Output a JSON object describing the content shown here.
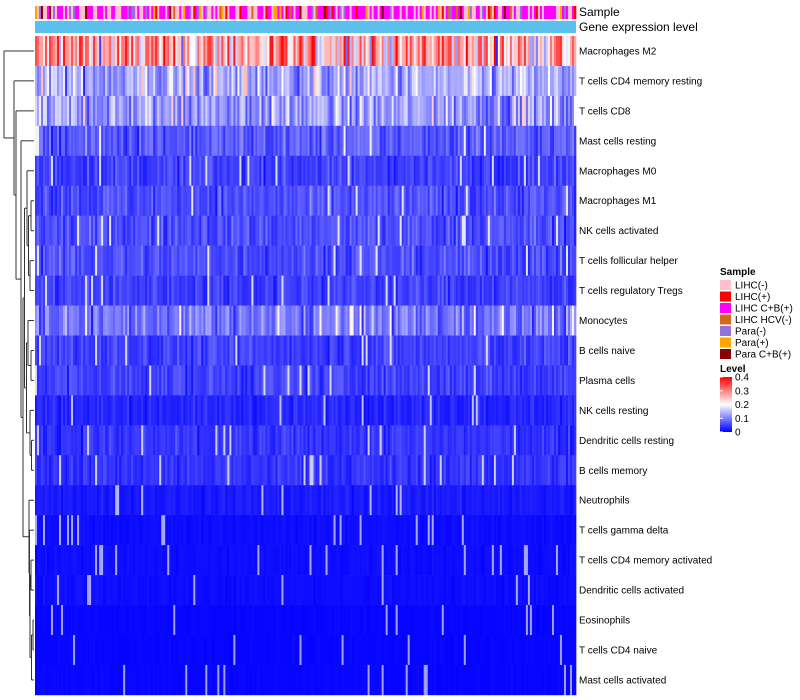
{
  "chart_data": {
    "type": "heatmap",
    "title": "",
    "annotations": {
      "sample_label": "Sample",
      "gene_label": "Gene expression level"
    },
    "rows": [
      {
        "name": "Macrophages M2",
        "mean": 0.26
      },
      {
        "name": "T cells CD4 memory resting",
        "mean": 0.13
      },
      {
        "name": "T cells CD8",
        "mean": 0.12
      },
      {
        "name": "Mast cells resting",
        "mean": 0.07
      },
      {
        "name": "Macrophages M0",
        "mean": 0.05
      },
      {
        "name": "Macrophages M1",
        "mean": 0.06
      },
      {
        "name": "NK cells activated",
        "mean": 0.06
      },
      {
        "name": "T cells follicular helper",
        "mean": 0.06
      },
      {
        "name": "T cells regulatory  Tregs",
        "mean": 0.05
      },
      {
        "name": "Monocytes",
        "mean": 0.09
      },
      {
        "name": "B cells naive",
        "mean": 0.05
      },
      {
        "name": "Plasma cells",
        "mean": 0.05
      },
      {
        "name": "NK cells resting",
        "mean": 0.03
      },
      {
        "name": "Dendritic cells resting",
        "mean": 0.04
      },
      {
        "name": "B cells memory",
        "mean": 0.04
      },
      {
        "name": "Neutrophils",
        "mean": 0.02
      },
      {
        "name": "T cells gamma delta",
        "mean": 0.01
      },
      {
        "name": "T cells CD4 memory activated",
        "mean": 0.01
      },
      {
        "name": "Dendritic cells activated",
        "mean": 0.01
      },
      {
        "name": "Eosinophils",
        "mean": 0.005
      },
      {
        "name": "T cells CD4 naive",
        "mean": 0.005
      },
      {
        "name": "Mast cells activated",
        "mean": 0.005
      }
    ],
    "legend_sample": {
      "title": "Sample",
      "entries": [
        {
          "label": "LIHC(-)",
          "color": "#FFC0CB"
        },
        {
          "label": "LIHC(+)",
          "color": "#FF0000"
        },
        {
          "label": "LIHC C+B(+)",
          "color": "#FF00FF"
        },
        {
          "label": "LIHC HCV(-)",
          "color": "#D2691E"
        },
        {
          "label": "Para(-)",
          "color": "#9370DB"
        },
        {
          "label": "Para(+)",
          "color": "#FFA500"
        },
        {
          "label": "Para C+B(+)",
          "color": "#8B0000"
        }
      ]
    },
    "legend_level": {
      "title": "Level",
      "ticks": [
        0.4,
        0.3,
        0.2,
        0.1,
        0
      ],
      "tick_labels": [
        "0.4",
        "0.3",
        "0.2",
        "0.1",
        "0"
      ],
      "range": [
        0,
        0.4
      ],
      "colors": [
        "#0000FF",
        "#FFFFFF",
        "#FF0000"
      ]
    },
    "gene_bar_color": "#5BC0EB",
    "value_range": [
      0,
      0.4
    ]
  }
}
